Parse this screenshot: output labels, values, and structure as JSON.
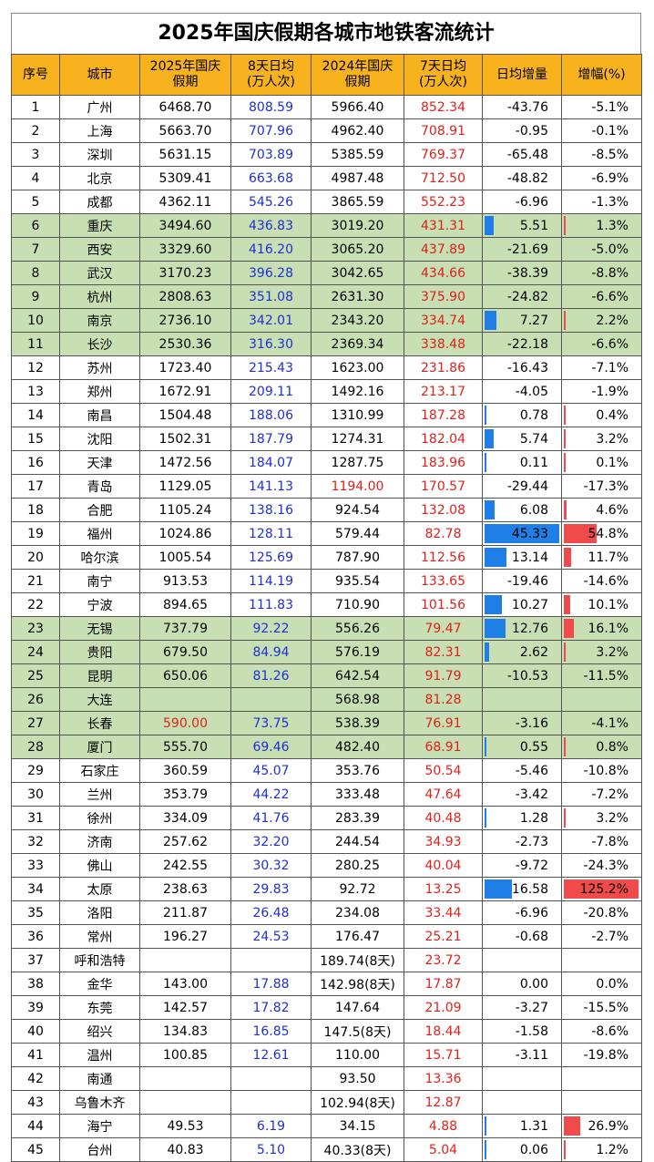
{
  "title": "2025年国庆假期各城市地铁客流统计",
  "colors": {
    "header_bg": "#f7b21e",
    "green_row": "#c7dfb2",
    "blue_text": "#1f2fd6",
    "red_text": "#e0201a",
    "bar_positive": "#1f7fe6",
    "growth_bar": "#f04a4a"
  },
  "headers": {
    "no": "序号",
    "city": "城市",
    "total2025_l1": "2025年国庆",
    "total2025_l2": "假期",
    "avg8_l1": "8天日均",
    "avg8_l2": "(万人次)",
    "total2024_l1": "2024年国庆",
    "total2024_l2": "假期",
    "avg7_l1": "7天日均",
    "avg7_l2": "(万人次)",
    "delta": "日均增量",
    "growth": "增幅(%)"
  },
  "rows": [
    {
      "no": "1",
      "city": "广州",
      "total2025": "6468.70",
      "avg8": "808.59",
      "total2024": "5966.40",
      "avg7": "852.34",
      "delta": "-43.76",
      "growth": "-5.1%",
      "green": false
    },
    {
      "no": "2",
      "city": "上海",
      "total2025": "5663.70",
      "avg8": "707.96",
      "total2024": "4962.40",
      "avg7": "708.91",
      "delta": "-0.95",
      "growth": "-0.1%",
      "green": false
    },
    {
      "no": "3",
      "city": "深圳",
      "total2025": "5631.15",
      "avg8": "703.89",
      "total2024": "5385.59",
      "avg7": "769.37",
      "delta": "-65.48",
      "growth": "-8.5%",
      "green": false
    },
    {
      "no": "4",
      "city": "北京",
      "total2025": "5309.41",
      "avg8": "663.68",
      "total2024": "4987.48",
      "avg7": "712.50",
      "delta": "-48.82",
      "growth": "-6.9%",
      "green": false
    },
    {
      "no": "5",
      "city": "成都",
      "total2025": "4362.11",
      "avg8": "545.26",
      "total2024": "3865.59",
      "avg7": "552.23",
      "delta": "-6.96",
      "growth": "-1.3%",
      "green": false
    },
    {
      "no": "6",
      "city": "重庆",
      "total2025": "3494.60",
      "avg8": "436.83",
      "total2024": "3019.20",
      "avg7": "431.31",
      "delta": "5.51",
      "growth": "1.3%",
      "green": true
    },
    {
      "no": "7",
      "city": "西安",
      "total2025": "3329.60",
      "avg8": "416.20",
      "total2024": "3065.20",
      "avg7": "437.89",
      "delta": "-21.69",
      "growth": "-5.0%",
      "green": true
    },
    {
      "no": "8",
      "city": "武汉",
      "total2025": "3170.23",
      "avg8": "396.28",
      "total2024": "3042.65",
      "avg7": "434.66",
      "delta": "-38.39",
      "growth": "-8.8%",
      "green": true
    },
    {
      "no": "9",
      "city": "杭州",
      "total2025": "2808.63",
      "avg8": "351.08",
      "total2024": "2631.30",
      "avg7": "375.90",
      "delta": "-24.82",
      "growth": "-6.6%",
      "green": true
    },
    {
      "no": "10",
      "city": "南京",
      "total2025": "2736.10",
      "avg8": "342.01",
      "total2024": "2343.20",
      "avg7": "334.74",
      "delta": "7.27",
      "growth": "2.2%",
      "green": true
    },
    {
      "no": "11",
      "city": "长沙",
      "total2025": "2530.36",
      "avg8": "316.30",
      "total2024": "2369.34",
      "avg7": "338.48",
      "delta": "-22.18",
      "growth": "-6.6%",
      "green": true
    },
    {
      "no": "12",
      "city": "苏州",
      "total2025": "1723.40",
      "avg8": "215.43",
      "total2024": "1623.00",
      "avg7": "231.86",
      "delta": "-16.43",
      "growth": "-7.1%",
      "green": false
    },
    {
      "no": "13",
      "city": "郑州",
      "total2025": "1672.91",
      "avg8": "209.11",
      "total2024": "1492.16",
      "avg7": "213.17",
      "delta": "-4.05",
      "growth": "-1.9%",
      "green": false
    },
    {
      "no": "14",
      "city": "南昌",
      "total2025": "1504.48",
      "avg8": "188.06",
      "total2024": "1310.99",
      "avg7": "187.28",
      "delta": "0.78",
      "growth": "0.4%",
      "green": false
    },
    {
      "no": "15",
      "city": "沈阳",
      "total2025": "1502.31",
      "avg8": "187.79",
      "total2024": "1274.31",
      "avg7": "182.04",
      "delta": "5.74",
      "growth": "3.2%",
      "green": false
    },
    {
      "no": "16",
      "city": "天津",
      "total2025": "1472.56",
      "avg8": "184.07",
      "total2024": "1287.75",
      "avg7": "183.96",
      "delta": "0.11",
      "growth": "0.1%",
      "green": false
    },
    {
      "no": "17",
      "city": "青岛",
      "total2025": "1129.05",
      "avg8": "141.13",
      "total2024": "1194.00",
      "avg7": "170.57",
      "delta": "-29.44",
      "growth": "-17.3%",
      "green": false,
      "red2024": true
    },
    {
      "no": "18",
      "city": "合肥",
      "total2025": "1105.24",
      "avg8": "138.16",
      "total2024": "924.54",
      "avg7": "132.08",
      "delta": "6.08",
      "growth": "4.6%",
      "green": false
    },
    {
      "no": "19",
      "city": "福州",
      "total2025": "1024.86",
      "avg8": "128.11",
      "total2024": "579.44",
      "avg7": "82.78",
      "delta": "45.33",
      "growth": "54.8%",
      "green": false
    },
    {
      "no": "20",
      "city": "哈尔滨",
      "total2025": "1005.54",
      "avg8": "125.69",
      "total2024": "787.90",
      "avg7": "112.56",
      "delta": "13.14",
      "growth": "11.7%",
      "green": false
    },
    {
      "no": "21",
      "city": "南宁",
      "total2025": "913.53",
      "avg8": "114.19",
      "total2024": "935.54",
      "avg7": "133.65",
      "delta": "-19.46",
      "growth": "-14.6%",
      "green": false
    },
    {
      "no": "22",
      "city": "宁波",
      "total2025": "894.65",
      "avg8": "111.83",
      "total2024": "710.90",
      "avg7": "101.56",
      "delta": "10.27",
      "growth": "10.1%",
      "green": false
    },
    {
      "no": "23",
      "city": "无锡",
      "total2025": "737.79",
      "avg8": "92.22",
      "total2024": "556.26",
      "avg7": "79.47",
      "delta": "12.76",
      "growth": "16.1%",
      "green": true
    },
    {
      "no": "24",
      "city": "贵阳",
      "total2025": "679.50",
      "avg8": "84.94",
      "total2024": "576.19",
      "avg7": "82.31",
      "delta": "2.62",
      "growth": "3.2%",
      "green": true
    },
    {
      "no": "25",
      "city": "昆明",
      "total2025": "650.06",
      "avg8": "81.26",
      "total2024": "642.54",
      "avg7": "91.79",
      "delta": "-10.53",
      "growth": "-11.5%",
      "green": true
    },
    {
      "no": "26",
      "city": "大连",
      "total2025": "",
      "avg8": "",
      "total2024": "568.98",
      "avg7": "81.28",
      "delta": "",
      "growth": "",
      "green": true
    },
    {
      "no": "27",
      "city": "长春",
      "total2025": "590.00",
      "avg8": "73.75",
      "total2024": "538.39",
      "avg7": "76.91",
      "delta": "-3.16",
      "growth": "-4.1%",
      "green": true,
      "red2025": true
    },
    {
      "no": "28",
      "city": "厦门",
      "total2025": "555.70",
      "avg8": "69.46",
      "total2024": "482.40",
      "avg7": "68.91",
      "delta": "0.55",
      "growth": "0.8%",
      "green": true
    },
    {
      "no": "29",
      "city": "石家庄",
      "total2025": "360.59",
      "avg8": "45.07",
      "total2024": "353.76",
      "avg7": "50.54",
      "delta": "-5.46",
      "growth": "-10.8%",
      "green": false
    },
    {
      "no": "30",
      "city": "兰州",
      "total2025": "353.79",
      "avg8": "44.22",
      "total2024": "333.48",
      "avg7": "47.64",
      "delta": "-3.42",
      "growth": "-7.2%",
      "green": false
    },
    {
      "no": "31",
      "city": "徐州",
      "total2025": "334.09",
      "avg8": "41.76",
      "total2024": "283.39",
      "avg7": "40.48",
      "delta": "1.28",
      "growth": "3.2%",
      "green": false
    },
    {
      "no": "32",
      "city": "济南",
      "total2025": "257.62",
      "avg8": "32.20",
      "total2024": "244.54",
      "avg7": "34.93",
      "delta": "-2.73",
      "growth": "-7.8%",
      "green": false
    },
    {
      "no": "33",
      "city": "佛山",
      "total2025": "242.55",
      "avg8": "30.32",
      "total2024": "280.25",
      "avg7": "40.04",
      "delta": "-9.72",
      "growth": "-24.3%",
      "green": false
    },
    {
      "no": "34",
      "city": "太原",
      "total2025": "238.63",
      "avg8": "29.83",
      "total2024": "92.72",
      "avg7": "13.25",
      "delta": "16.58",
      "growth": "125.2%",
      "green": false
    },
    {
      "no": "35",
      "city": "洛阳",
      "total2025": "211.87",
      "avg8": "26.48",
      "total2024": "234.08",
      "avg7": "33.44",
      "delta": "-6.96",
      "growth": "-20.8%",
      "green": false
    },
    {
      "no": "36",
      "city": "常州",
      "total2025": "196.27",
      "avg8": "24.53",
      "total2024": "176.47",
      "avg7": "25.21",
      "delta": "-0.68",
      "growth": "-2.7%",
      "green": false
    },
    {
      "no": "37",
      "city": "呼和浩特",
      "total2025": "",
      "avg8": "",
      "total2024": "189.74(8天)",
      "avg7": "23.72",
      "delta": "",
      "growth": "",
      "green": false
    },
    {
      "no": "38",
      "city": "金华",
      "total2025": "143.00",
      "avg8": "17.88",
      "total2024": "142.98(8天)",
      "avg7": "17.87",
      "delta": "0.00",
      "growth": "0.0%",
      "green": false
    },
    {
      "no": "39",
      "city": "东莞",
      "total2025": "142.57",
      "avg8": "17.82",
      "total2024": "147.64",
      "avg7": "21.09",
      "delta": "-3.27",
      "growth": "-15.5%",
      "green": false
    },
    {
      "no": "40",
      "city": "绍兴",
      "total2025": "134.83",
      "avg8": "16.85",
      "total2024": "147.5(8天)",
      "avg7": "18.44",
      "delta": "-1.58",
      "growth": "-8.6%",
      "green": false
    },
    {
      "no": "41",
      "city": "温州",
      "total2025": "100.85",
      "avg8": "12.61",
      "total2024": "110.00",
      "avg7": "15.71",
      "delta": "-3.11",
      "growth": "-19.8%",
      "green": false
    },
    {
      "no": "42",
      "city": "南通",
      "total2025": "",
      "avg8": "",
      "total2024": "93.50",
      "avg7": "13.36",
      "delta": "",
      "growth": "",
      "green": false
    },
    {
      "no": "43",
      "city": "乌鲁木齐",
      "total2025": "",
      "avg8": "",
      "total2024": "102.94(8天)",
      "avg7": "12.87",
      "delta": "",
      "growth": "",
      "green": false
    },
    {
      "no": "44",
      "city": "海宁",
      "total2025": "49.53",
      "avg8": "6.19",
      "total2024": "34.15",
      "avg7": "4.88",
      "delta": "1.31",
      "growth": "26.9%",
      "green": false
    },
    {
      "no": "45",
      "city": "台州",
      "total2025": "40.83",
      "avg8": "5.10",
      "total2024": "40.33(8天)",
      "avg7": "5.04",
      "delta": "0.06",
      "growth": "1.2%",
      "green": false
    }
  ]
}
